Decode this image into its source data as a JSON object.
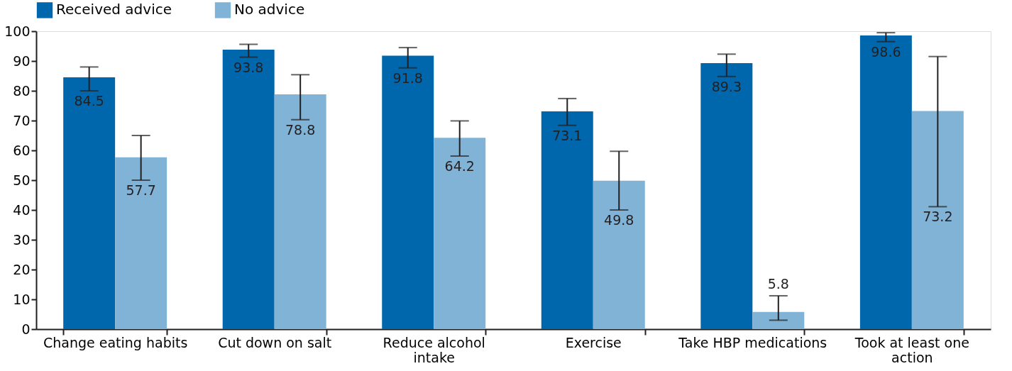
{
  "chart_data": {
    "type": "bar",
    "categories": [
      "Change eating habits",
      "Cut down on salt",
      "Reduce alcohol intake",
      "Exercise",
      "Take HBP medications",
      "Took at least one action"
    ],
    "series": [
      {
        "name": "Received advice",
        "color": "#0067ac",
        "values": [
          84.5,
          93.8,
          91.8,
          73.1,
          89.3,
          98.6
        ],
        "errors": [
          [
            80.0,
            88.0
          ],
          [
            91.3,
            95.6
          ],
          [
            87.7,
            94.5
          ],
          [
            68.4,
            77.4
          ],
          [
            84.8,
            92.3
          ],
          [
            96.5,
            99.5
          ]
        ]
      },
      {
        "name": "No advice",
        "color": "#80b3d5",
        "values": [
          57.7,
          78.8,
          64.2,
          49.8,
          5.8,
          73.2
        ],
        "errors": [
          [
            50.0,
            65.0
          ],
          [
            70.3,
            85.4
          ],
          [
            58.1,
            69.9
          ],
          [
            40.0,
            59.7
          ],
          [
            3.0,
            11.2
          ],
          [
            41.1,
            91.5
          ]
        ]
      }
    ],
    "ylim": [
      0,
      100
    ],
    "yticks": [
      0,
      10,
      20,
      30,
      40,
      50,
      60,
      70,
      80,
      90,
      100
    ],
    "data_labels": true,
    "grid": false,
    "legend": "top left"
  }
}
